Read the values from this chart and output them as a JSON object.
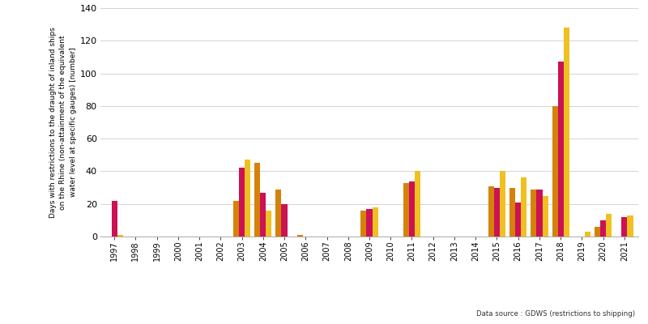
{
  "years": [
    1997,
    1998,
    1999,
    2000,
    2001,
    2002,
    2003,
    2004,
    2005,
    2006,
    2007,
    2008,
    2009,
    2010,
    2011,
    2012,
    2013,
    2014,
    2015,
    2016,
    2017,
    2018,
    2019,
    2020,
    2021
  ],
  "upper_rhine": [
    0,
    0,
    0,
    0,
    0,
    0,
    22,
    45,
    29,
    1,
    0,
    0,
    16,
    0,
    33,
    0,
    0,
    0,
    31,
    30,
    29,
    80,
    0,
    6,
    0
  ],
  "middle_rhine": [
    22,
    0,
    0,
    0,
    0,
    0,
    42,
    27,
    20,
    0,
    0,
    0,
    17,
    0,
    34,
    0,
    0,
    0,
    30,
    21,
    29,
    107,
    0,
    10,
    12
  ],
  "lower_rhine": [
    1,
    0,
    0,
    0,
    0,
    0,
    47,
    16,
    0,
    0,
    0,
    0,
    18,
    0,
    40,
    0,
    0,
    0,
    40,
    36,
    25,
    128,
    3,
    14,
    13
  ],
  "upper_color": "#D4820A",
  "middle_color": "#CC1155",
  "lower_color": "#F0C020",
  "ylabel_line1": "Days with restrictions to the draught of inland ships",
  "ylabel_line2": "on the Rhine (non-attainment of the equivalent",
  "ylabel_line3": "water level at specific gauges) [number]",
  "ylim": [
    0,
    140
  ],
  "yticks": [
    0,
    20,
    40,
    60,
    80,
    100,
    120,
    140
  ],
  "datasource": "Data source : GDWS (restrictions to shipping)",
  "trend_color": "#555555"
}
